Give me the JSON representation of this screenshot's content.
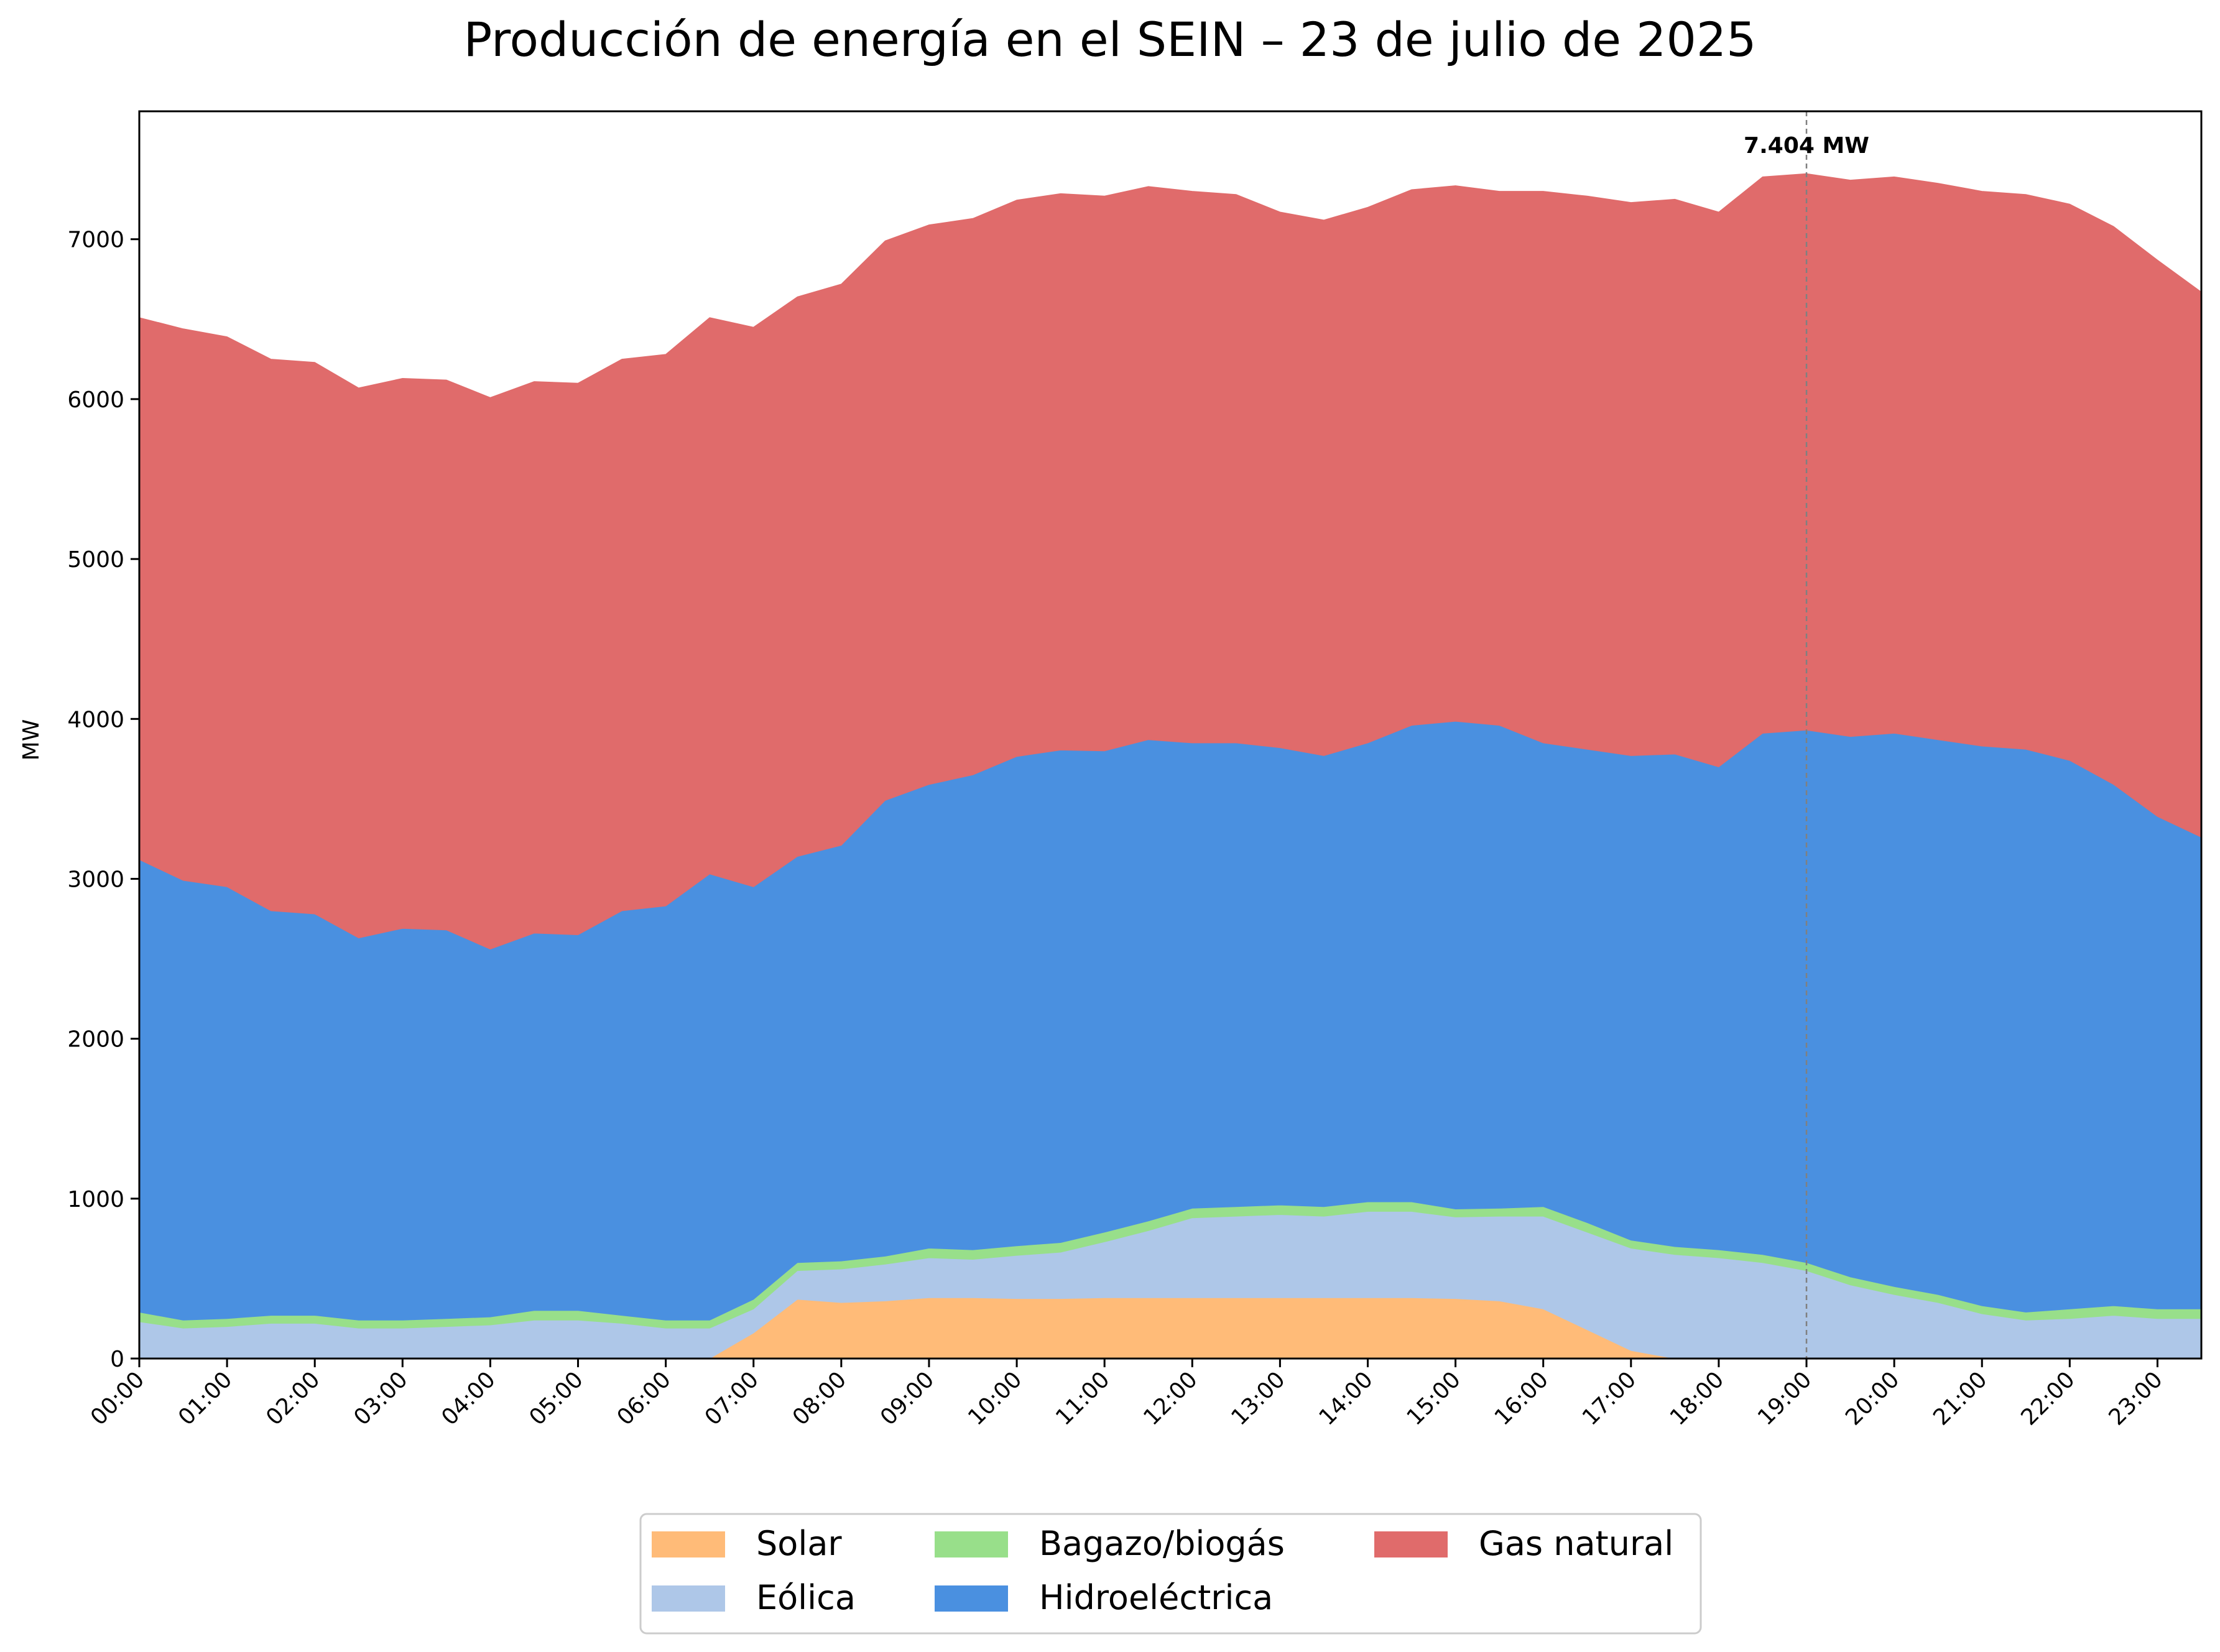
{
  "chart_data": {
    "type": "area",
    "title": "Producción de energía en el SEIN – 23 de julio de 2025",
    "xlabel": "",
    "ylabel": "MW",
    "ylim": [
      0,
      7800
    ],
    "y_ticks": [
      0,
      1000,
      2000,
      3000,
      4000,
      5000,
      6000,
      7000
    ],
    "x_tick_labels": [
      "00:00",
      "01:00",
      "02:00",
      "03:00",
      "04:00",
      "05:00",
      "06:00",
      "07:00",
      "08:00",
      "09:00",
      "10:00",
      "11:00",
      "12:00",
      "13:00",
      "14:00",
      "15:00",
      "16:00",
      "17:00",
      "18:00",
      "19:00",
      "20:00",
      "21:00",
      "22:00",
      "23:00"
    ],
    "x": [
      "00:00",
      "00:30",
      "01:00",
      "01:30",
      "02:00",
      "02:30",
      "03:00",
      "03:30",
      "04:00",
      "04:30",
      "05:00",
      "05:30",
      "06:00",
      "06:30",
      "07:00",
      "07:30",
      "08:00",
      "08:30",
      "09:00",
      "09:30",
      "10:00",
      "10:30",
      "11:00",
      "11:30",
      "12:00",
      "12:30",
      "13:00",
      "13:30",
      "14:00",
      "14:30",
      "15:00",
      "15:30",
      "16:00",
      "16:30",
      "17:00",
      "17:30",
      "18:00",
      "18:30",
      "19:00",
      "19:30",
      "20:00",
      "20:30",
      "21:00",
      "21:30",
      "22:00",
      "22:30",
      "23:00",
      "23:30"
    ],
    "stacked": true,
    "grid": false,
    "legend_position": "bottom",
    "series": [
      {
        "name": "Solar",
        "color": "#ffbb78",
        "values": [
          0,
          0,
          0,
          0,
          0,
          0,
          0,
          0,
          0,
          0,
          0,
          0,
          0,
          0,
          160,
          370,
          350,
          360,
          380,
          380,
          375,
          375,
          380,
          380,
          380,
          380,
          380,
          380,
          380,
          380,
          375,
          360,
          310,
          180,
          50,
          0,
          0,
          0,
          0,
          0,
          0,
          0,
          0,
          0,
          0,
          0,
          0,
          0
        ]
      },
      {
        "name": "Eólica",
        "color": "#aec7e8",
        "values": [
          230,
          190,
          200,
          220,
          220,
          190,
          190,
          200,
          210,
          240,
          240,
          220,
          190,
          190,
          150,
          180,
          210,
          230,
          250,
          240,
          270,
          290,
          350,
          420,
          500,
          510,
          520,
          510,
          540,
          540,
          510,
          530,
          580,
          610,
          640,
          650,
          630,
          600,
          550,
          460,
          400,
          350,
          280,
          240,
          250,
          270,
          250,
          250
        ]
      },
      {
        "name": "Bagazo/biogás",
        "color": "#98df8a",
        "values": [
          60,
          50,
          50,
          50,
          50,
          50,
          50,
          50,
          50,
          60,
          60,
          50,
          50,
          50,
          60,
          50,
          50,
          50,
          60,
          60,
          60,
          60,
          60,
          60,
          60,
          60,
          60,
          60,
          60,
          60,
          50,
          50,
          60,
          60,
          50,
          50,
          50,
          50,
          50,
          50,
          50,
          50,
          50,
          50,
          60,
          60,
          60,
          60
        ]
      },
      {
        "name": "Hidroeléctrica",
        "color": "#4a90e0",
        "values": [
          2830,
          2750,
          2700,
          2530,
          2510,
          2390,
          2450,
          2430,
          2300,
          2360,
          2350,
          2530,
          2590,
          2790,
          2580,
          2540,
          2600,
          2850,
          2900,
          2970,
          3060,
          3080,
          3010,
          3010,
          2910,
          2900,
          2860,
          2820,
          2870,
          2980,
          3050,
          3020,
          2900,
          2960,
          3030,
          3080,
          3020,
          3260,
          3330,
          3380,
          3460,
          3470,
          3500,
          3520,
          3430,
          3260,
          3080,
          2950
        ]
      },
      {
        "name": "Gas natural",
        "color": "#e06b6b",
        "values": [
          3390,
          3450,
          3440,
          3450,
          3450,
          3440,
          3440,
          3440,
          3450,
          3450,
          3450,
          3450,
          3450,
          3480,
          3500,
          3500,
          3510,
          3500,
          3500,
          3480,
          3480,
          3480,
          3470,
          3460,
          3450,
          3430,
          3350,
          3350,
          3350,
          3350,
          3350,
          3340,
          3450,
          3460,
          3460,
          3470,
          3470,
          3480,
          3480,
          3480,
          3480,
          3480,
          3470,
          3470,
          3480,
          3490,
          3480,
          3410
        ]
      }
    ],
    "annotation": {
      "text": "7.404 MW",
      "x": "19:00",
      "value": 7404
    }
  }
}
